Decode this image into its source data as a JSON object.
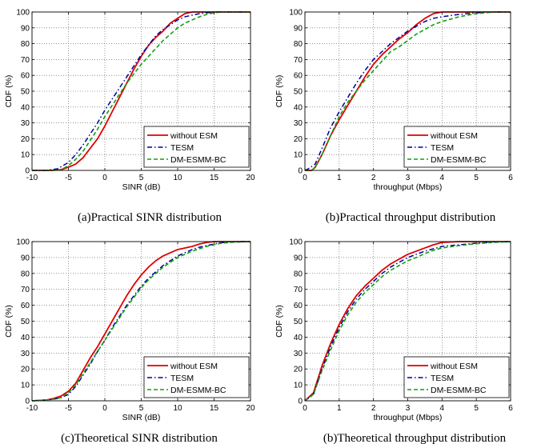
{
  "series_styles": [
    {
      "color": "#e00000",
      "dash": "",
      "width": 1.8
    },
    {
      "color": "#000099",
      "dash": "6,3,1.5,3",
      "width": 1.5
    },
    {
      "color": "#10a010",
      "dash": "5,3",
      "width": 1.6
    }
  ],
  "chart_data": [
    {
      "type": "line",
      "caption": "(a)Practical SINR distribution",
      "xlabel": "SINR (dB)",
      "ylabel": "CDF (%)",
      "xlim": [
        -10,
        20
      ],
      "ylim": [
        0,
        100
      ],
      "xticks": [
        -10,
        -5,
        0,
        5,
        10,
        15,
        20
      ],
      "yticks": [
        0,
        10,
        20,
        30,
        40,
        50,
        60,
        70,
        80,
        90,
        100
      ],
      "grid": true,
      "legend_position": "bottom-right",
      "series": [
        {
          "name": "without ESM",
          "x": [
            -10,
            -7.5,
            -6,
            -5,
            -4,
            -3,
            -2,
            -1,
            0,
            1,
            2,
            3,
            4,
            5,
            6,
            7,
            8,
            9,
            10,
            11,
            12,
            13,
            15,
            20
          ],
          "y": [
            0,
            0,
            0.5,
            2,
            4,
            8,
            14,
            20,
            28,
            37,
            46,
            55,
            64,
            72,
            79,
            84,
            88,
            93,
            96,
            99,
            100,
            100,
            100,
            100
          ]
        },
        {
          "name": "TESM",
          "x": [
            -10,
            -8,
            -6.5,
            -5,
            -4,
            -3,
            -2,
            -1,
            0,
            1,
            2,
            3,
            4,
            5,
            6,
            7,
            8,
            9,
            10,
            11,
            12,
            13,
            14,
            15,
            20
          ],
          "y": [
            0,
            0,
            1,
            5,
            10,
            16,
            23,
            30,
            38,
            45,
            52,
            59,
            66,
            73,
            79,
            85,
            89,
            92,
            95,
            97,
            98,
            99,
            99.5,
            100,
            100
          ]
        },
        {
          "name": "DM-ESMM-BC",
          "x": [
            -10,
            -7,
            -6,
            -5,
            -4,
            -3,
            -2,
            -1,
            0,
            1,
            2,
            3,
            4,
            5,
            6,
            7,
            8,
            9,
            10,
            11,
            12,
            13,
            14,
            15,
            16,
            20
          ],
          "y": [
            0,
            0,
            0.5,
            3,
            7,
            12,
            19,
            26,
            34,
            41,
            48,
            55,
            61,
            67,
            72,
            77,
            82,
            86,
            90,
            93,
            95,
            97,
            98.5,
            99.5,
            100,
            100
          ]
        }
      ]
    },
    {
      "type": "line",
      "caption": "(b)Practical throughput distribution",
      "xlabel": "throughput (Mbps)",
      "ylabel": "CDF (%)",
      "xlim": [
        0,
        6
      ],
      "ylim": [
        0,
        100
      ],
      "xticks": [
        0,
        1,
        2,
        3,
        4,
        5,
        6
      ],
      "yticks": [
        0,
        10,
        20,
        30,
        40,
        50,
        60,
        70,
        80,
        90,
        100
      ],
      "grid": true,
      "legend_position": "bottom-right",
      "series": [
        {
          "name": "without ESM",
          "x": [
            0,
            0.2,
            0.3,
            0.5,
            0.75,
            1.0,
            1.25,
            1.5,
            1.75,
            2.0,
            2.25,
            2.5,
            2.75,
            3.0,
            3.25,
            3.5,
            3.75,
            4.0,
            4.5,
            5.0,
            6.0
          ],
          "y": [
            0,
            0,
            2,
            10,
            22,
            32,
            41,
            50,
            59,
            67,
            73,
            78,
            83,
            87,
            92,
            96,
            99,
            100,
            100,
            100,
            100
          ]
        },
        {
          "name": "TESM",
          "x": [
            0,
            0.1,
            0.3,
            0.5,
            0.75,
            1.0,
            1.25,
            1.5,
            1.75,
            2.0,
            2.25,
            2.5,
            2.75,
            3.0,
            3.25,
            3.5,
            3.75,
            4.0,
            4.5,
            5.0,
            5.5,
            6.0
          ],
          "y": [
            0,
            1,
            4,
            14,
            27,
            37,
            46,
            55,
            63,
            70,
            75,
            80,
            84,
            88,
            91,
            94,
            96,
            97,
            98.5,
            99.5,
            100,
            100
          ]
        },
        {
          "name": "DM-ESMM-BC",
          "x": [
            0,
            0.2,
            0.3,
            0.5,
            0.75,
            1.0,
            1.25,
            1.5,
            1.75,
            2.0,
            2.25,
            2.5,
            2.75,
            3.0,
            3.25,
            3.5,
            3.75,
            4.0,
            4.5,
            5.0,
            5.5,
            6.0
          ],
          "y": [
            0,
            0,
            2,
            10,
            22,
            34,
            43,
            50,
            57,
            63,
            69,
            75,
            78,
            82,
            86,
            89,
            92,
            94,
            97,
            99,
            100,
            100
          ]
        }
      ]
    },
    {
      "type": "line",
      "caption": "(c)Theoretical SINR distribution",
      "xlabel": "SINR (dB)",
      "ylabel": "CDF (%)",
      "xlim": [
        -10,
        20
      ],
      "ylim": [
        0,
        100
      ],
      "xticks": [
        -10,
        -5,
        0,
        5,
        10,
        15,
        20
      ],
      "yticks": [
        0,
        10,
        20,
        30,
        40,
        50,
        60,
        70,
        80,
        90,
        100
      ],
      "grid": true,
      "legend_position": "bottom-right",
      "series": [
        {
          "name": "without ESM",
          "x": [
            -10,
            -8,
            -7,
            -6,
            -5,
            -4,
            -3,
            -2,
            -1,
            0,
            1,
            2,
            3,
            4,
            5,
            6,
            7,
            8,
            9,
            10,
            11,
            12,
            13,
            14,
            15,
            20
          ],
          "y": [
            0,
            0.5,
            1.5,
            3,
            6,
            11,
            19,
            27,
            34,
            42,
            50,
            58,
            66,
            73,
            79,
            84,
            88,
            91,
            93,
            95,
            96,
            97,
            98.5,
            99.5,
            100,
            100
          ]
        },
        {
          "name": "TESM",
          "x": [
            -10,
            -8,
            -7,
            -6,
            -5,
            -4,
            -3,
            -2,
            -1,
            0,
            1,
            2,
            3,
            4,
            5,
            6,
            7,
            8,
            9,
            10,
            11,
            12,
            13,
            14,
            15,
            16,
            18,
            20
          ],
          "y": [
            0,
            0.5,
            1,
            2,
            4,
            9,
            16,
            23,
            31,
            38,
            46,
            53,
            60,
            66,
            72,
            77,
            81,
            85,
            88,
            91,
            93,
            95,
            96.5,
            97.5,
            98.5,
            99.3,
            100,
            100
          ]
        },
        {
          "name": "DM-ESMM-BC",
          "x": [
            -10,
            -8,
            -7,
            -6,
            -5,
            -4,
            -3,
            -2,
            -1,
            0,
            1,
            2,
            3,
            4,
            5,
            6,
            7,
            8,
            9,
            10,
            11,
            12,
            13,
            14,
            15,
            16,
            18,
            20
          ],
          "y": [
            0,
            0.5,
            1,
            2,
            5,
            10,
            17,
            24,
            31,
            38,
            45,
            52,
            59,
            65,
            71,
            76,
            80,
            84,
            87,
            90,
            92,
            94,
            95.5,
            97,
            98,
            99,
            99.7,
            100
          ]
        }
      ]
    },
    {
      "type": "line",
      "caption": "(b)Theoretical throughput distribution",
      "xlabel": "throughput (Mbps)",
      "ylabel": "CDF (%)",
      "xlim": [
        0,
        6
      ],
      "ylim": [
        0,
        100
      ],
      "xticks": [
        0,
        1,
        2,
        3,
        4,
        5,
        6
      ],
      "yticks": [
        0,
        10,
        20,
        30,
        40,
        50,
        60,
        70,
        80,
        90,
        100
      ],
      "grid": true,
      "legend_position": "bottom-right",
      "series": [
        {
          "name": "without ESM",
          "x": [
            0,
            0.25,
            0.5,
            0.75,
            1.0,
            1.25,
            1.5,
            1.75,
            2.0,
            2.25,
            2.5,
            2.75,
            3.0,
            3.25,
            3.5,
            3.75,
            4.0,
            4.5,
            5.0,
            6.0
          ],
          "y": [
            0,
            5,
            22,
            36,
            48,
            58,
            66,
            72,
            77,
            82,
            86,
            89,
            92,
            94,
            96,
            98,
            99.5,
            100,
            100,
            100
          ]
        },
        {
          "name": "TESM",
          "x": [
            0,
            0.25,
            0.5,
            0.75,
            1.0,
            1.25,
            1.5,
            1.75,
            2.0,
            2.25,
            2.5,
            2.75,
            3.0,
            3.25,
            3.5,
            3.75,
            4.0,
            4.5,
            5.0,
            5.5,
            6.0
          ],
          "y": [
            0,
            4,
            20,
            34,
            46,
            56,
            64,
            70,
            75,
            80,
            84,
            87,
            90,
            92,
            94,
            95.5,
            97,
            98,
            99,
            99.7,
            100
          ]
        },
        {
          "name": "DM-ESMM-BC",
          "x": [
            0,
            0.25,
            0.5,
            0.75,
            1.0,
            1.25,
            1.5,
            1.75,
            2.0,
            2.25,
            2.5,
            2.75,
            3.0,
            3.25,
            3.5,
            3.75,
            4.0,
            4.5,
            5.0,
            5.5,
            6.0
          ],
          "y": [
            0,
            4,
            19,
            32,
            44,
            54,
            62,
            68,
            73,
            78,
            82,
            85,
            88,
            90,
            92.5,
            94.5,
            96,
            97.5,
            98.7,
            99.5,
            100
          ]
        }
      ]
    }
  ]
}
